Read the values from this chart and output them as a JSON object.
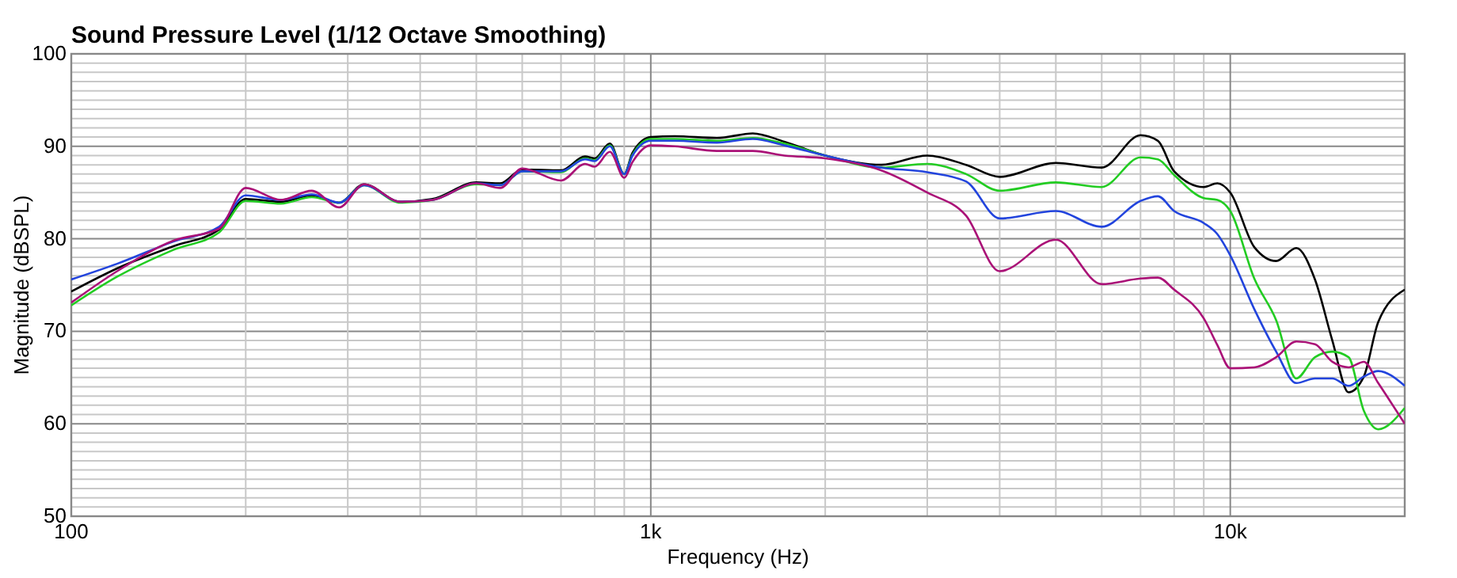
{
  "chart_data": {
    "type": "line",
    "title": "Sound Pressure Level (1/12 Octave Smoothing)",
    "xlabel": "Frequency (Hz)",
    "ylabel": "Magnitude (dBSPL)",
    "log": "x",
    "grid": true,
    "marker": "none",
    "line_style": "solid",
    "xlim": [
      100,
      20000
    ],
    "ylim": [
      50,
      100
    ],
    "xticks": [
      {
        "value": 100,
        "label": "100"
      },
      {
        "value": 200,
        "label": null
      },
      {
        "value": 300,
        "label": null
      },
      {
        "value": 400,
        "label": null
      },
      {
        "value": 500,
        "label": null
      },
      {
        "value": 600,
        "label": null
      },
      {
        "value": 700,
        "label": null
      },
      {
        "value": 800,
        "label": null
      },
      {
        "value": 900,
        "label": null
      },
      {
        "value": 1000,
        "label": "1k"
      },
      {
        "value": 2000,
        "label": null
      },
      {
        "value": 3000,
        "label": null
      },
      {
        "value": 4000,
        "label": null
      },
      {
        "value": 5000,
        "label": null
      },
      {
        "value": 6000,
        "label": null
      },
      {
        "value": 7000,
        "label": null
      },
      {
        "value": 8000,
        "label": null
      },
      {
        "value": 9000,
        "label": null
      },
      {
        "value": 10000,
        "label": "10k"
      }
    ],
    "yticks": [
      50,
      {
        "value": 51,
        "label": null
      },
      {
        "value": 52,
        "label": null
      },
      {
        "value": 53,
        "label": null
      },
      {
        "value": 54,
        "label": null
      },
      {
        "value": 55,
        "label": null
      },
      {
        "value": 56,
        "label": null
      },
      {
        "value": 57,
        "label": null
      },
      {
        "value": 58,
        "label": null
      },
      {
        "value": 59,
        "label": null
      },
      60,
      {
        "value": 61,
        "label": null
      },
      {
        "value": 62,
        "label": null
      },
      {
        "value": 63,
        "label": null
      },
      {
        "value": 64,
        "label": null
      },
      {
        "value": 65,
        "label": null
      },
      {
        "value": 66,
        "label": null
      },
      {
        "value": 67,
        "label": null
      },
      {
        "value": 68,
        "label": null
      },
      {
        "value": 69,
        "label": null
      },
      70,
      {
        "value": 71,
        "label": null
      },
      {
        "value": 72,
        "label": null
      },
      {
        "value": 73,
        "label": null
      },
      {
        "value": 74,
        "label": null
      },
      {
        "value": 75,
        "label": null
      },
      {
        "value": 76,
        "label": null
      },
      {
        "value": 77,
        "label": null
      },
      {
        "value": 78,
        "label": null
      },
      {
        "value": 79,
        "label": null
      },
      80,
      {
        "value": 81,
        "label": null
      },
      {
        "value": 82,
        "label": null
      },
      {
        "value": 83,
        "label": null
      },
      {
        "value": 84,
        "label": null
      },
      {
        "value": 85,
        "label": null
      },
      {
        "value": 86,
        "label": null
      },
      {
        "value": 87,
        "label": null
      },
      {
        "value": 88,
        "label": null
      },
      {
        "value": 89,
        "label": null
      },
      90,
      {
        "value": 91,
        "label": null
      },
      {
        "value": 92,
        "label": null
      },
      {
        "value": 93,
        "label": null
      },
      {
        "value": 94,
        "label": null
      },
      {
        "value": 95,
        "label": null
      },
      {
        "value": 96,
        "label": null
      },
      {
        "value": 97,
        "label": null
      },
      {
        "value": 98,
        "label": null
      },
      {
        "value": 99,
        "label": null
      },
      100
    ],
    "x": [
      100,
      120,
      150,
      180,
      200,
      230,
      260,
      290,
      320,
      370,
      420,
      500,
      550,
      600,
      700,
      770,
      800,
      850,
      900,
      930,
      1000,
      1100,
      1300,
      1500,
      1700,
      2000,
      2500,
      3000,
      3500,
      4000,
      5000,
      6000,
      7000,
      7500,
      8000,
      9000,
      9500,
      10000,
      11000,
      12000,
      13000,
      14000,
      15000,
      16000,
      17000,
      18000,
      20000
    ],
    "series": [
      {
        "color": "#000000",
        "values": [
          74.3,
          76.8,
          79.2,
          81,
          84.3,
          84,
          84.7,
          83.9,
          85.9,
          84,
          84.3,
          86.1,
          86,
          87.5,
          87.4,
          88.9,
          88.7,
          90.3,
          87,
          89.3,
          91,
          91.1,
          90.9,
          91.4,
          90.5,
          89,
          88,
          89,
          88,
          86.7,
          88.2,
          87.7,
          91.2,
          90.6,
          87.3,
          85.6,
          86,
          85,
          79.1,
          77.6,
          79,
          75.6,
          69,
          63.4,
          65.1,
          71,
          74.5
        ]
      },
      {
        "color": "#22cc22",
        "values": [
          72.8,
          75.9,
          78.8,
          80.7,
          84.1,
          83.8,
          84.5,
          83.9,
          85.8,
          83.9,
          84.2,
          85.9,
          85.8,
          87.3,
          87.2,
          88.7,
          88.5,
          90.1,
          87,
          89.1,
          90.8,
          90.8,
          90.6,
          90.9,
          90.3,
          89,
          87.7,
          88.1,
          87,
          85.2,
          86.1,
          85.6,
          88.8,
          88.6,
          86.9,
          84.4,
          84.2,
          83,
          75.7,
          71.2,
          64.9,
          67.2,
          67.8,
          67.2,
          61.4,
          59.4,
          61.7
        ]
      },
      {
        "color": "#2244dd",
        "values": [
          75.6,
          77.3,
          79.7,
          81.3,
          84.7,
          84.2,
          84.8,
          83.9,
          85.8,
          84,
          84.2,
          86,
          85.8,
          87.3,
          87.3,
          88.6,
          88.4,
          90,
          87,
          89,
          90.6,
          90.6,
          90.4,
          90.8,
          90.1,
          89,
          87.7,
          87.2,
          86.2,
          82.2,
          83,
          81.3,
          84.1,
          84.6,
          83,
          81.7,
          80.5,
          78.2,
          72.4,
          67.8,
          64.4,
          64.9,
          64.9,
          64.1,
          65.1,
          65.7,
          64.1
        ]
      },
      {
        "color": "#aa1177",
        "values": [
          73.1,
          76.5,
          79.8,
          81.1,
          85.5,
          84.2,
          85.2,
          83.4,
          85.9,
          84,
          84.2,
          86,
          85.5,
          87.6,
          86.3,
          88.1,
          87.8,
          89.4,
          86.6,
          88.3,
          90.1,
          90,
          89.5,
          89.5,
          89,
          88.7,
          87.4,
          85,
          82.5,
          76.5,
          79.9,
          75.1,
          75.7,
          75.8,
          74.5,
          71.4,
          68.5,
          66,
          66.1,
          67.2,
          68.9,
          68.6,
          66.7,
          66.1,
          66.7,
          64.4,
          60
        ]
      }
    ]
  }
}
